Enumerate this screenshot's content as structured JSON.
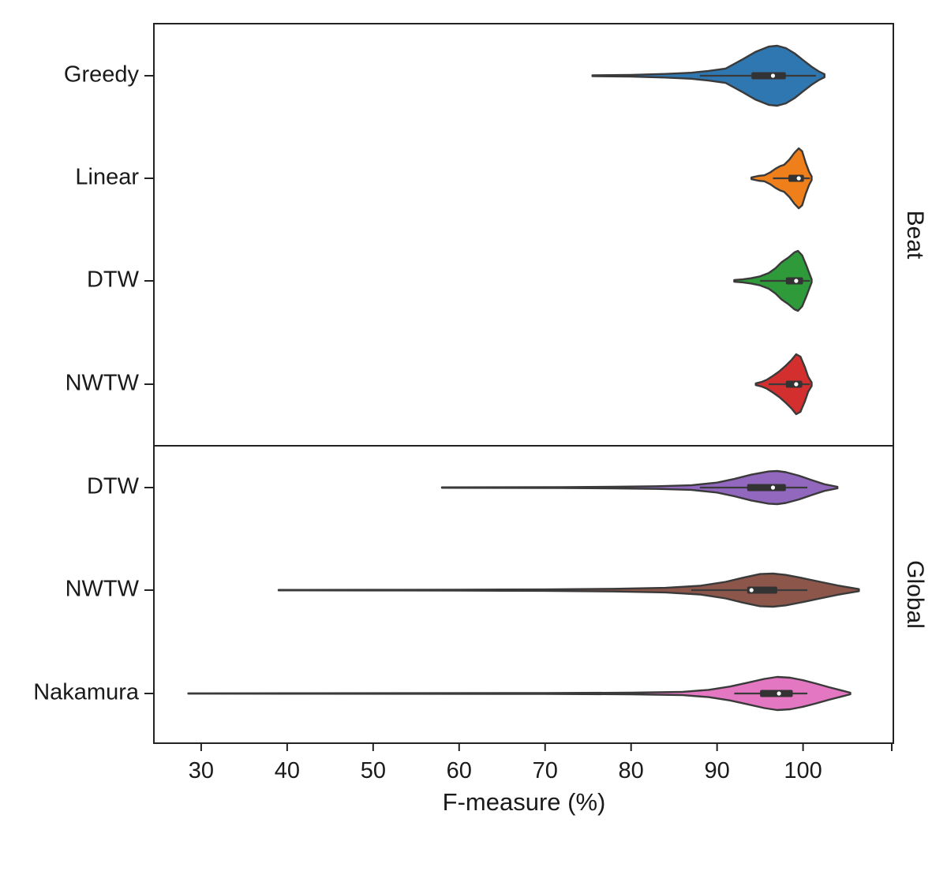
{
  "chart_data": {
    "type": "violin",
    "xlabel": "F-measure (%)",
    "xlim": [
      24.5,
      110.5
    ],
    "xticks": [
      30,
      40,
      50,
      60,
      70,
      80,
      90,
      100
    ],
    "orientation": "horizontal",
    "facet_position": "right",
    "facets": [
      {
        "name": "Beat",
        "categories": [
          {
            "label": "Greedy",
            "color": "#2f77b1",
            "min": 75.5,
            "max": 102.5,
            "median": 96.5,
            "q1": 94.0,
            "q3": 98.0,
            "whisker_low": 88.0,
            "whisker_high": 101.5,
            "profile": [
              [
                75.5,
                0.015
              ],
              [
                80,
                0.03
              ],
              [
                84,
                0.06
              ],
              [
                87,
                0.1
              ],
              [
                89,
                0.16
              ],
              [
                91,
                0.24
              ],
              [
                93,
                0.55
              ],
              [
                94.5,
                0.8
              ],
              [
                96,
                0.97
              ],
              [
                97,
                1.0
              ],
              [
                98,
                0.92
              ],
              [
                99,
                0.75
              ],
              [
                100,
                0.52
              ],
              [
                101,
                0.3
              ],
              [
                101.8,
                0.15
              ],
              [
                102.5,
                0.05
              ]
            ]
          },
          {
            "label": "Linear",
            "color": "#ef7f1a",
            "min": 94.0,
            "max": 101.0,
            "median": 99.5,
            "q1": 98.3,
            "q3": 100.1,
            "whisker_low": 96.5,
            "whisker_high": 100.8,
            "profile": [
              [
                94.0,
                0.03
              ],
              [
                94.8,
                0.08
              ],
              [
                95.5,
                0.1
              ],
              [
                96.2,
                0.2
              ],
              [
                96.8,
                0.32
              ],
              [
                97.3,
                0.4
              ],
              [
                97.8,
                0.45
              ],
              [
                98.4,
                0.62
              ],
              [
                99.0,
                0.85
              ],
              [
                99.5,
                1.0
              ],
              [
                99.9,
                0.9
              ],
              [
                100.3,
                0.52
              ],
              [
                100.7,
                0.22
              ],
              [
                101.0,
                0.06
              ]
            ]
          },
          {
            "label": "DTW",
            "color": "#2f9a3a",
            "min": 92.0,
            "max": 101.0,
            "median": 99.2,
            "q1": 98.0,
            "q3": 100.0,
            "whisker_low": 95.0,
            "whisker_high": 100.8,
            "profile": [
              [
                92.0,
                0.03
              ],
              [
                93.0,
                0.05
              ],
              [
                94.0,
                0.09
              ],
              [
                95.0,
                0.15
              ],
              [
                96.0,
                0.26
              ],
              [
                96.8,
                0.42
              ],
              [
                97.5,
                0.62
              ],
              [
                98.3,
                0.78
              ],
              [
                99.0,
                0.95
              ],
              [
                99.4,
                1.0
              ],
              [
                99.9,
                0.85
              ],
              [
                100.4,
                0.5
              ],
              [
                100.8,
                0.2
              ],
              [
                101.0,
                0.05
              ]
            ]
          },
          {
            "label": "NWTW",
            "color": "#d42f2f",
            "min": 94.5,
            "max": 101.0,
            "median": 99.2,
            "q1": 98.0,
            "q3": 99.9,
            "whisker_low": 96.0,
            "whisker_high": 100.8,
            "profile": [
              [
                94.5,
                0.03
              ],
              [
                95.2,
                0.08
              ],
              [
                95.8,
                0.15
              ],
              [
                96.5,
                0.28
              ],
              [
                97.2,
                0.42
              ],
              [
                98.0,
                0.62
              ],
              [
                98.7,
                0.82
              ],
              [
                99.2,
                1.0
              ],
              [
                99.7,
                0.92
              ],
              [
                100.2,
                0.58
              ],
              [
                100.6,
                0.25
              ],
              [
                101.0,
                0.06
              ]
            ]
          }
        ]
      },
      {
        "name": "Global",
        "categories": [
          {
            "label": "DTW",
            "color": "#9268bf",
            "min": 58.0,
            "max": 104.0,
            "median": 96.5,
            "q1": 93.5,
            "q3": 98.0,
            "whisker_low": 88.0,
            "whisker_high": 100.5,
            "profile": [
              [
                58,
                0.012
              ],
              [
                65,
                0.02
              ],
              [
                72,
                0.03
              ],
              [
                78,
                0.05
              ],
              [
                83,
                0.08
              ],
              [
                87,
                0.14
              ],
              [
                90,
                0.3
              ],
              [
                92,
                0.52
              ],
              [
                94,
                0.78
              ],
              [
                96,
                0.97
              ],
              [
                97,
                1.0
              ],
              [
                98,
                0.93
              ],
              [
                99.5,
                0.72
              ],
              [
                101,
                0.45
              ],
              [
                102.5,
                0.2
              ],
              [
                104,
                0.05
              ]
            ]
          },
          {
            "label": "NWTW",
            "color": "#8c564b",
            "min": 39.0,
            "max": 106.5,
            "median": 94.0,
            "q1": 93.5,
            "q3": 97.0,
            "whisker_low": 87.0,
            "whisker_high": 100.5,
            "profile": [
              [
                39,
                0.012
              ],
              [
                50,
                0.02
              ],
              [
                60,
                0.03
              ],
              [
                70,
                0.045
              ],
              [
                78,
                0.08
              ],
              [
                84,
                0.14
              ],
              [
                88,
                0.26
              ],
              [
                91,
                0.5
              ],
              [
                93,
                0.75
              ],
              [
                95,
                0.97
              ],
              [
                96.5,
                1.0
              ],
              [
                98,
                0.92
              ],
              [
                100,
                0.72
              ],
              [
                102,
                0.5
              ],
              [
                104,
                0.28
              ],
              [
                106.5,
                0.06
              ]
            ]
          },
          {
            "label": "Nakamura",
            "color": "#e377c2",
            "min": 28.5,
            "max": 105.5,
            "median": 97.2,
            "q1": 95.0,
            "q3": 98.8,
            "whisker_low": 92.0,
            "whisker_high": 100.5,
            "profile": [
              [
                28.5,
                0.01
              ],
              [
                40,
                0.015
              ],
              [
                55,
                0.02
              ],
              [
                70,
                0.03
              ],
              [
                80,
                0.05
              ],
              [
                86,
                0.1
              ],
              [
                89,
                0.22
              ],
              [
                91.5,
                0.42
              ],
              [
                93.5,
                0.65
              ],
              [
                95.5,
                0.88
              ],
              [
                97,
                1.0
              ],
              [
                98.5,
                0.95
              ],
              [
                100,
                0.8
              ],
              [
                101.5,
                0.6
              ],
              [
                103,
                0.38
              ],
              [
                104.5,
                0.18
              ],
              [
                105.5,
                0.05
              ]
            ]
          }
        ]
      }
    ]
  }
}
